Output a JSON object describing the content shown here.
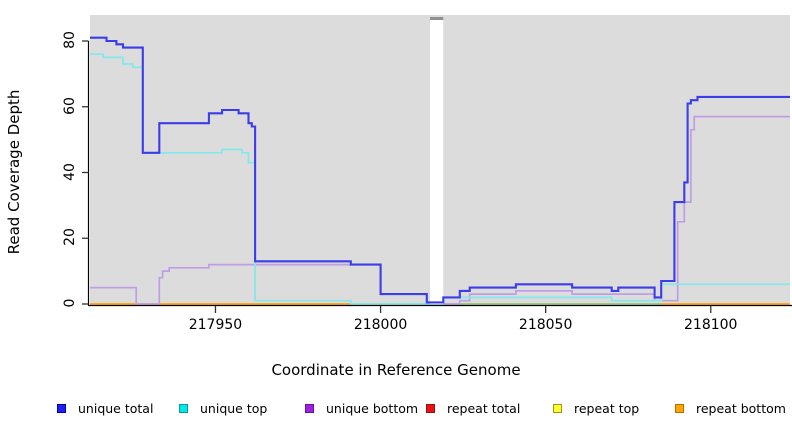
{
  "chart_data": {
    "type": "line",
    "subtype": "step-coverage-plot",
    "title": "",
    "xlabel": "Coordinate in Reference Genome",
    "ylabel": "Read Coverage Depth",
    "xlim": [
      217912,
      218124
    ],
    "ylim": [
      0,
      80
    ],
    "xticks": {
      "values": [
        217950,
        218000,
        218050,
        218100
      ],
      "labels": [
        "217950",
        "218000",
        "218050",
        "218100"
      ]
    },
    "yticks": {
      "values": [
        0,
        20,
        40,
        60,
        80
      ],
      "labels": [
        "0",
        "20",
        "40",
        "60",
        "80"
      ]
    },
    "grid": false,
    "panel_background": "#DCDCDC",
    "outer_background": "#FFFFFF",
    "legend_position": "bottom",
    "masked_region": {
      "from": 218015,
      "to": 218019,
      "color": "#FFFFFF"
    },
    "zero_overlap_segment": {
      "from": 217991,
      "to": 218085,
      "value": 0,
      "color": "#8FCE8F"
    },
    "series": [
      {
        "name": "repeat total",
        "line_color": "#DD3333",
        "legend_fill": "#EE1111",
        "legend_border": "#991111",
        "steps": [
          [
            217912,
            0
          ]
        ]
      },
      {
        "name": "repeat top",
        "line_color": "#F0F060",
        "legend_fill": "#FFFF33",
        "legend_border": "#99990D",
        "steps": [
          [
            217912,
            0
          ]
        ]
      },
      {
        "name": "repeat bottom",
        "line_color": "#FFA41E",
        "legend_fill": "#FFA500",
        "legend_border": "#B36E00",
        "steps": [
          [
            217912,
            0
          ]
        ]
      },
      {
        "name": "unique bottom",
        "line_color": "#C09EE6",
        "legend_fill": "#A020E0",
        "legend_border": "#6A0DAD",
        "steps": [
          [
            217912,
            5
          ],
          [
            217926,
            0
          ],
          [
            217933,
            8
          ],
          [
            217934,
            10
          ],
          [
            217936,
            11
          ],
          [
            217948,
            12
          ],
          [
            218000,
            3
          ],
          [
            218014,
            0
          ],
          [
            218024,
            1
          ],
          [
            218027,
            3
          ],
          [
            218041,
            4
          ],
          [
            218058,
            3
          ],
          [
            218083,
            1
          ],
          [
            218090,
            25
          ],
          [
            218092,
            31
          ],
          [
            218094,
            53
          ],
          [
            218095,
            57
          ]
        ]
      },
      {
        "name": "unique top",
        "line_color": "#82E8EC",
        "legend_fill": "#00E8E8",
        "legend_border": "#0B9999",
        "steps": [
          [
            217912,
            76
          ],
          [
            217916,
            75
          ],
          [
            217922,
            73
          ],
          [
            217925,
            72
          ],
          [
            217928,
            46
          ],
          [
            217952,
            47
          ],
          [
            217958,
            46
          ],
          [
            217960,
            43
          ],
          [
            217962,
            1
          ],
          [
            217991,
            0
          ],
          [
            218019,
            2
          ],
          [
            218070,
            1
          ],
          [
            218085,
            6
          ]
        ]
      },
      {
        "name": "unique total",
        "line_color": "#3C3CE8",
        "legend_fill": "#1F1FF0",
        "legend_border": "#0000B0",
        "steps": [
          [
            217912,
            81
          ],
          [
            217917,
            80
          ],
          [
            217920,
            79
          ],
          [
            217922,
            78
          ],
          [
            217928,
            46
          ],
          [
            217933,
            55
          ],
          [
            217948,
            58
          ],
          [
            217952,
            59
          ],
          [
            217957,
            58
          ],
          [
            217960,
            55
          ],
          [
            217961,
            54
          ],
          [
            217962,
            13
          ],
          [
            217991,
            12
          ],
          [
            218000,
            3
          ],
          [
            218014,
            0.5
          ],
          [
            218019,
            2
          ],
          [
            218024,
            4
          ],
          [
            218027,
            5
          ],
          [
            218041,
            6
          ],
          [
            218058,
            5
          ],
          [
            218070,
            4
          ],
          [
            218072,
            5
          ],
          [
            218083,
            2
          ],
          [
            218085,
            7
          ],
          [
            218089,
            31
          ],
          [
            218092,
            37
          ],
          [
            218093,
            61
          ],
          [
            218094,
            62
          ],
          [
            218096,
            63
          ]
        ]
      }
    ],
    "legend_order": [
      "unique total",
      "unique top",
      "unique bottom",
      "repeat total",
      "repeat top",
      "repeat bottom"
    ]
  }
}
